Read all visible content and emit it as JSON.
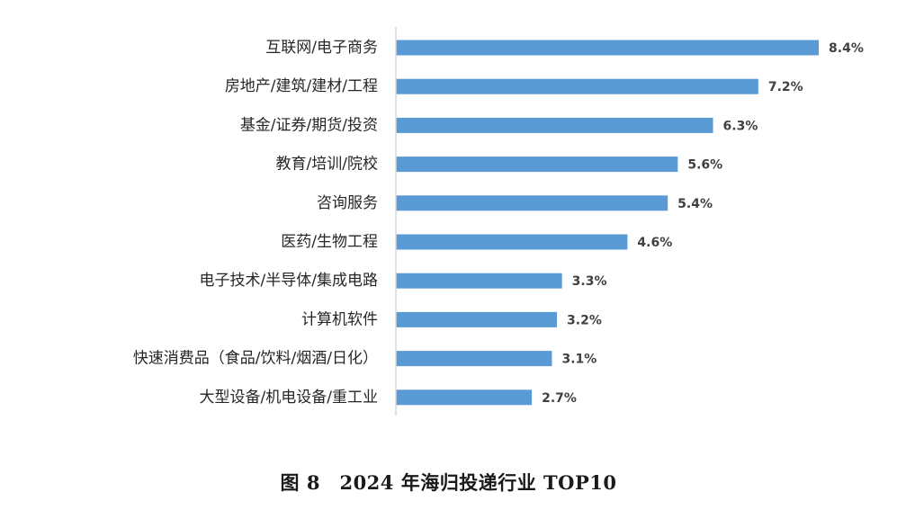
{
  "figure": {
    "caption": "图 8　2024 年海归投递行业 TOP10"
  },
  "chart_data": {
    "type": "bar",
    "orientation": "horizontal",
    "categories": [
      "互联网/电子商务",
      "房地产/建筑/建材/工程",
      "基金/证券/期货/投资",
      "教育/培训/院校",
      "咨询服务",
      "医药/生物工程",
      "电子技术/半导体/集成电路",
      "计算机软件",
      "快速消费品（食品/饮料/烟酒/日化）",
      "大型设备/机电设备/重工业"
    ],
    "values": [
      8.4,
      7.2,
      6.3,
      5.6,
      5.4,
      4.6,
      3.3,
      3.2,
      3.1,
      2.7
    ],
    "value_labels": [
      "8.4%",
      "7.2%",
      "6.3%",
      "5.6%",
      "5.4%",
      "4.6%",
      "3.3%",
      "3.2%",
      "3.1%",
      "2.7%"
    ],
    "unit": "%",
    "bar_color": "#5b9bd5",
    "axis_color": "#d9d9d9",
    "grid": false,
    "legend": "none",
    "xlim": [
      0,
      8.9
    ]
  }
}
